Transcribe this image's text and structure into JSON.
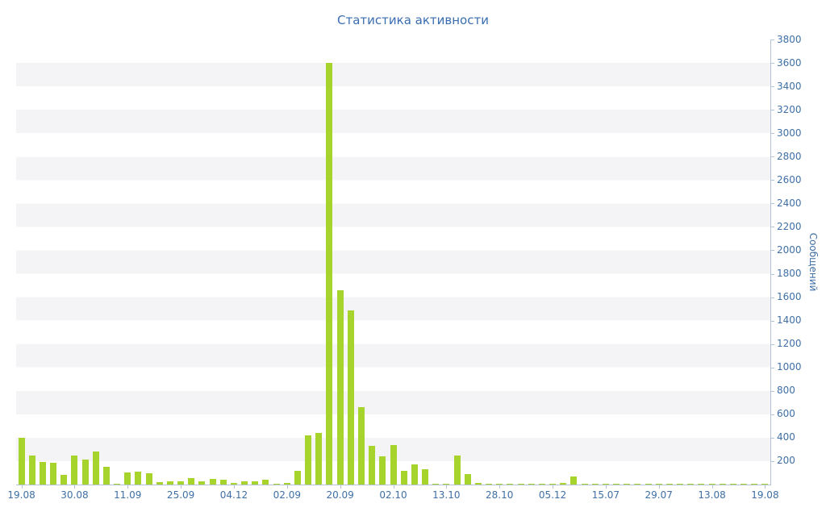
{
  "page": {
    "title": "Статистика активности"
  },
  "chart_data": {
    "type": "bar",
    "title": "Статистика активности",
    "xlabel": "",
    "ylabel": "Сообщений",
    "ylim": [
      0,
      3800
    ],
    "y_tick_step": 200,
    "grid": "striped-horizontal-bands",
    "legend_position": "none",
    "x_tick_labels": [
      "19.08",
      "30.08",
      "11.09",
      "25.09",
      "04.12",
      "02.09",
      "20.09",
      "02.10",
      "13.10",
      "28.10",
      "05.12",
      "15.07",
      "29.07",
      "13.08",
      "19.08"
    ],
    "x_label_every_n_bars": 5,
    "values": [
      400,
      250,
      190,
      185,
      80,
      245,
      215,
      280,
      150,
      10,
      100,
      110,
      95,
      20,
      25,
      30,
      55,
      25,
      45,
      40,
      15,
      25,
      30,
      40,
      10,
      12,
      120,
      420,
      440,
      3600,
      1660,
      1490,
      660,
      330,
      240,
      340,
      120,
      175,
      130,
      8,
      6,
      250,
      90,
      15,
      6,
      5,
      5,
      6,
      5,
      5,
      8,
      12,
      70,
      8,
      5,
      5,
      6,
      5,
      5,
      6,
      5,
      5,
      8,
      10,
      5,
      6,
      5,
      5,
      6,
      5,
      10
    ],
    "colors": {
      "bar": "#a6d32c",
      "axis": "#b3c3da",
      "text": "#3f6fa5",
      "title": "#3a6db0",
      "stripe": "#f4f4f6",
      "background": "#ffffff"
    }
  }
}
